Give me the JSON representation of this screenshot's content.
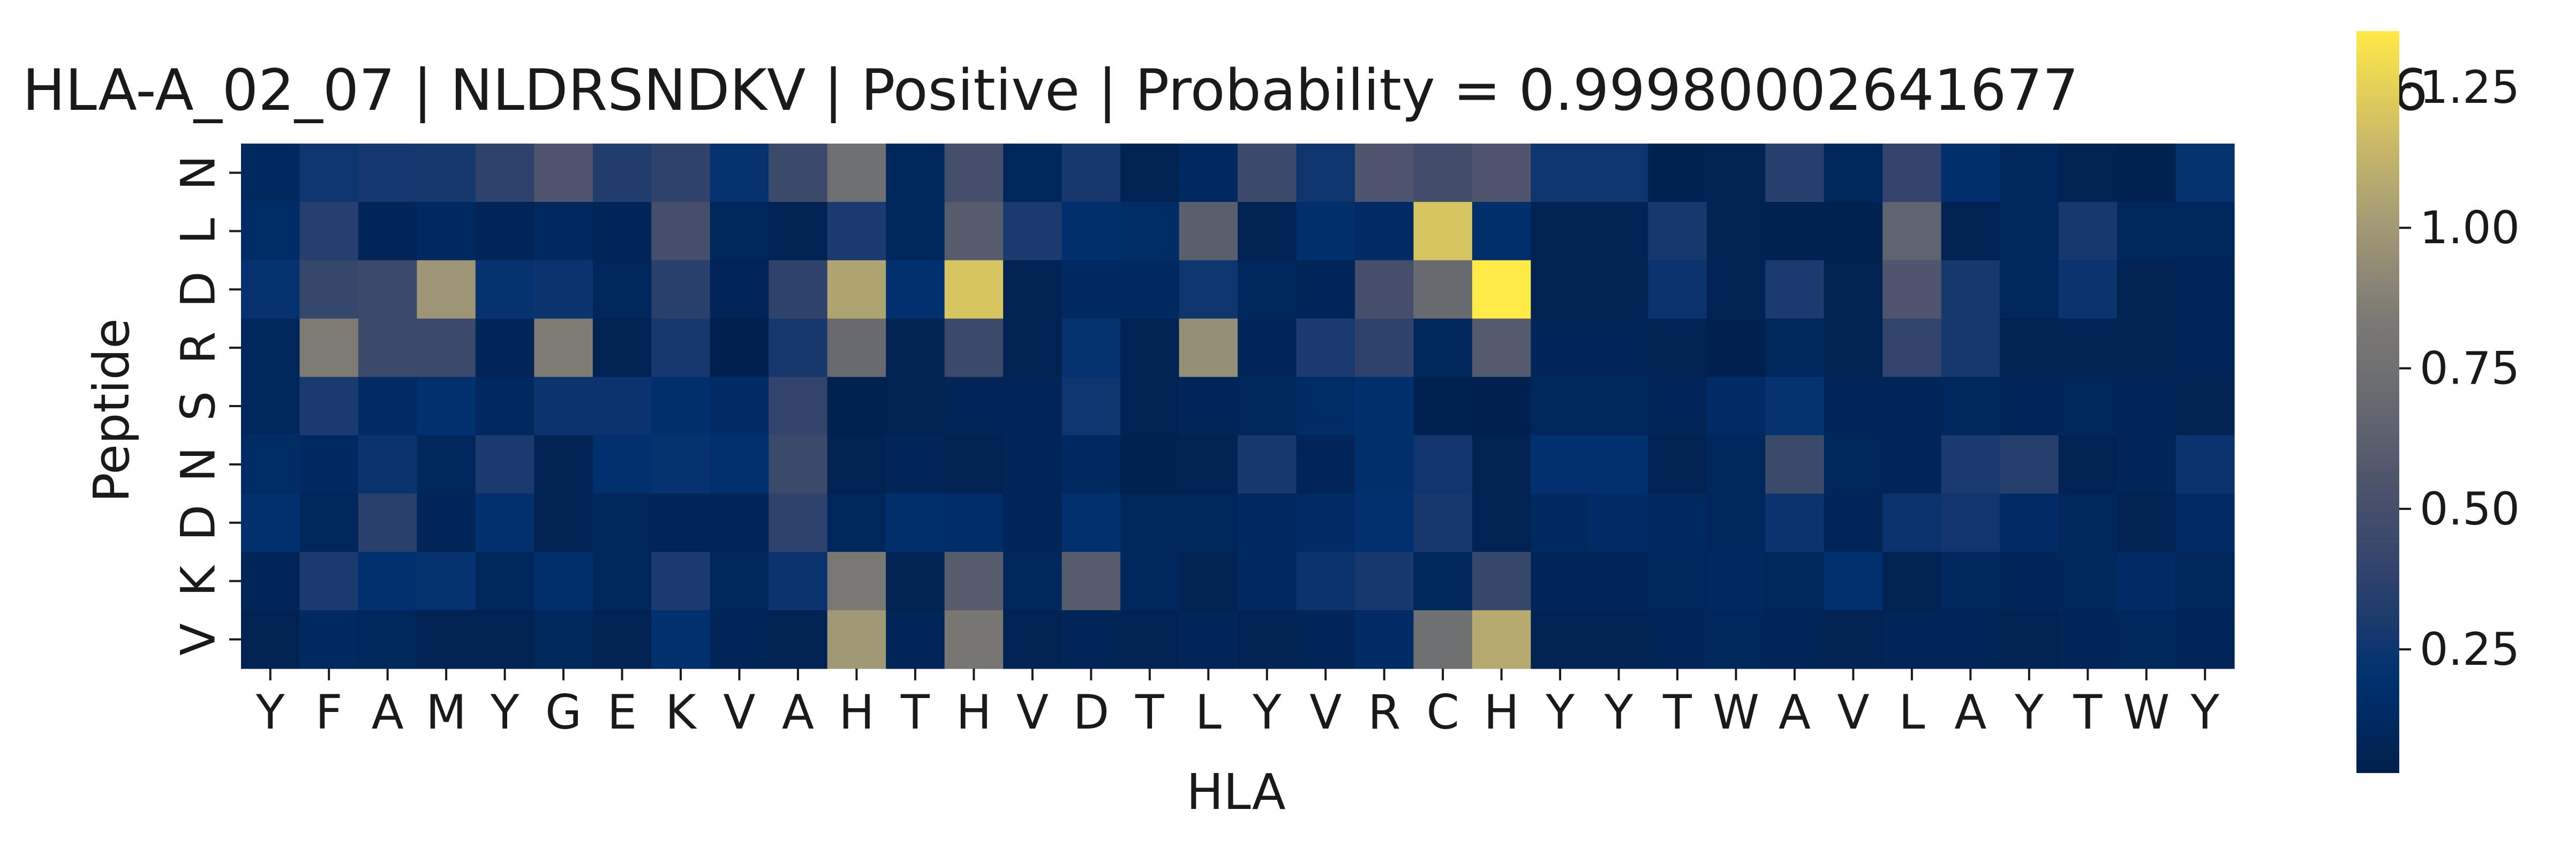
{
  "chart_data": {
    "type": "heatmap",
    "title": "HLA-A_02_07 | NLDRSNDKV | Positive | Probability = 0.99980002641677",
    "title_overlap_suffix": "6",
    "xlabel": "HLA",
    "ylabel": "Peptide",
    "x_tick_labels": [
      "Y",
      "F",
      "A",
      "M",
      "Y",
      "G",
      "E",
      "K",
      "V",
      "A",
      "H",
      "T",
      "H",
      "V",
      "D",
      "T",
      "L",
      "Y",
      "V",
      "R",
      "C",
      "H",
      "Y",
      "Y",
      "T",
      "W",
      "A",
      "V",
      "L",
      "A",
      "Y",
      "T",
      "W",
      "Y"
    ],
    "y_tick_labels": [
      "N",
      "L",
      "D",
      "R",
      "S",
      "N",
      "D",
      "K",
      "V"
    ],
    "colormap": "cividis",
    "colorbar": {
      "min": 0.03,
      "max": 1.35,
      "ticks": [
        0.25,
        0.5,
        0.75,
        1.0,
        1.25
      ],
      "tick_labels": [
        "0.25",
        "0.50",
        "0.75",
        "1.00",
        "1.25"
      ]
    },
    "values": [
      [
        0.12,
        0.25,
        0.27,
        0.28,
        0.38,
        0.55,
        0.33,
        0.38,
        0.22,
        0.45,
        0.75,
        0.1,
        0.5,
        0.1,
        0.28,
        0.06,
        0.12,
        0.45,
        0.25,
        0.55,
        0.48,
        0.55,
        0.25,
        0.25,
        0.05,
        0.06,
        0.35,
        0.1,
        0.4,
        0.18,
        0.1,
        0.06,
        0.05,
        0.22
      ],
      [
        0.15,
        0.35,
        0.08,
        0.12,
        0.08,
        0.12,
        0.08,
        0.5,
        0.1,
        0.06,
        0.3,
        0.1,
        0.6,
        0.3,
        0.18,
        0.15,
        0.62,
        0.06,
        0.18,
        0.14,
        1.2,
        0.18,
        0.06,
        0.06,
        0.28,
        0.06,
        0.05,
        0.05,
        0.65,
        0.06,
        0.1,
        0.28,
        0.1,
        0.1
      ],
      [
        0.22,
        0.42,
        0.45,
        0.98,
        0.22,
        0.24,
        0.1,
        0.36,
        0.07,
        0.38,
        1.05,
        0.2,
        1.2,
        0.06,
        0.12,
        0.12,
        0.25,
        0.1,
        0.08,
        0.5,
        0.7,
        1.35,
        0.06,
        0.06,
        0.24,
        0.06,
        0.3,
        0.06,
        0.55,
        0.28,
        0.1,
        0.24,
        0.06,
        0.08
      ],
      [
        0.1,
        0.85,
        0.45,
        0.45,
        0.08,
        0.85,
        0.06,
        0.28,
        0.04,
        0.28,
        0.7,
        0.06,
        0.45,
        0.06,
        0.22,
        0.06,
        0.95,
        0.08,
        0.3,
        0.38,
        0.1,
        0.58,
        0.08,
        0.08,
        0.06,
        0.04,
        0.1,
        0.06,
        0.4,
        0.28,
        0.06,
        0.06,
        0.06,
        0.08
      ],
      [
        0.1,
        0.3,
        0.14,
        0.2,
        0.12,
        0.24,
        0.24,
        0.18,
        0.14,
        0.4,
        0.05,
        0.06,
        0.08,
        0.08,
        0.25,
        0.06,
        0.08,
        0.1,
        0.15,
        0.18,
        0.05,
        0.04,
        0.1,
        0.1,
        0.08,
        0.14,
        0.22,
        0.08,
        0.08,
        0.1,
        0.08,
        0.1,
        0.08,
        0.06
      ],
      [
        0.15,
        0.12,
        0.24,
        0.1,
        0.3,
        0.06,
        0.2,
        0.22,
        0.2,
        0.45,
        0.06,
        0.08,
        0.06,
        0.08,
        0.12,
        0.05,
        0.06,
        0.28,
        0.08,
        0.18,
        0.26,
        0.06,
        0.2,
        0.2,
        0.06,
        0.1,
        0.45,
        0.1,
        0.08,
        0.3,
        0.34,
        0.06,
        0.08,
        0.24
      ],
      [
        0.2,
        0.1,
        0.36,
        0.08,
        0.2,
        0.06,
        0.1,
        0.08,
        0.08,
        0.38,
        0.1,
        0.18,
        0.16,
        0.08,
        0.2,
        0.1,
        0.1,
        0.12,
        0.14,
        0.2,
        0.28,
        0.06,
        0.12,
        0.14,
        0.12,
        0.1,
        0.24,
        0.08,
        0.24,
        0.26,
        0.14,
        0.1,
        0.06,
        0.14
      ],
      [
        0.08,
        0.3,
        0.2,
        0.22,
        0.1,
        0.18,
        0.1,
        0.3,
        0.1,
        0.24,
        0.82,
        0.06,
        0.6,
        0.1,
        0.6,
        0.1,
        0.06,
        0.12,
        0.24,
        0.28,
        0.1,
        0.42,
        0.08,
        0.08,
        0.1,
        0.12,
        0.1,
        0.2,
        0.06,
        0.1,
        0.08,
        0.1,
        0.14,
        0.1
      ],
      [
        0.06,
        0.12,
        0.1,
        0.06,
        0.06,
        0.1,
        0.06,
        0.2,
        0.08,
        0.06,
        1.0,
        0.08,
        0.8,
        0.06,
        0.08,
        0.06,
        0.08,
        0.06,
        0.08,
        0.14,
        0.75,
        1.08,
        0.06,
        0.06,
        0.08,
        0.1,
        0.08,
        0.06,
        0.08,
        0.08,
        0.06,
        0.08,
        0.1,
        0.08
      ]
    ]
  }
}
